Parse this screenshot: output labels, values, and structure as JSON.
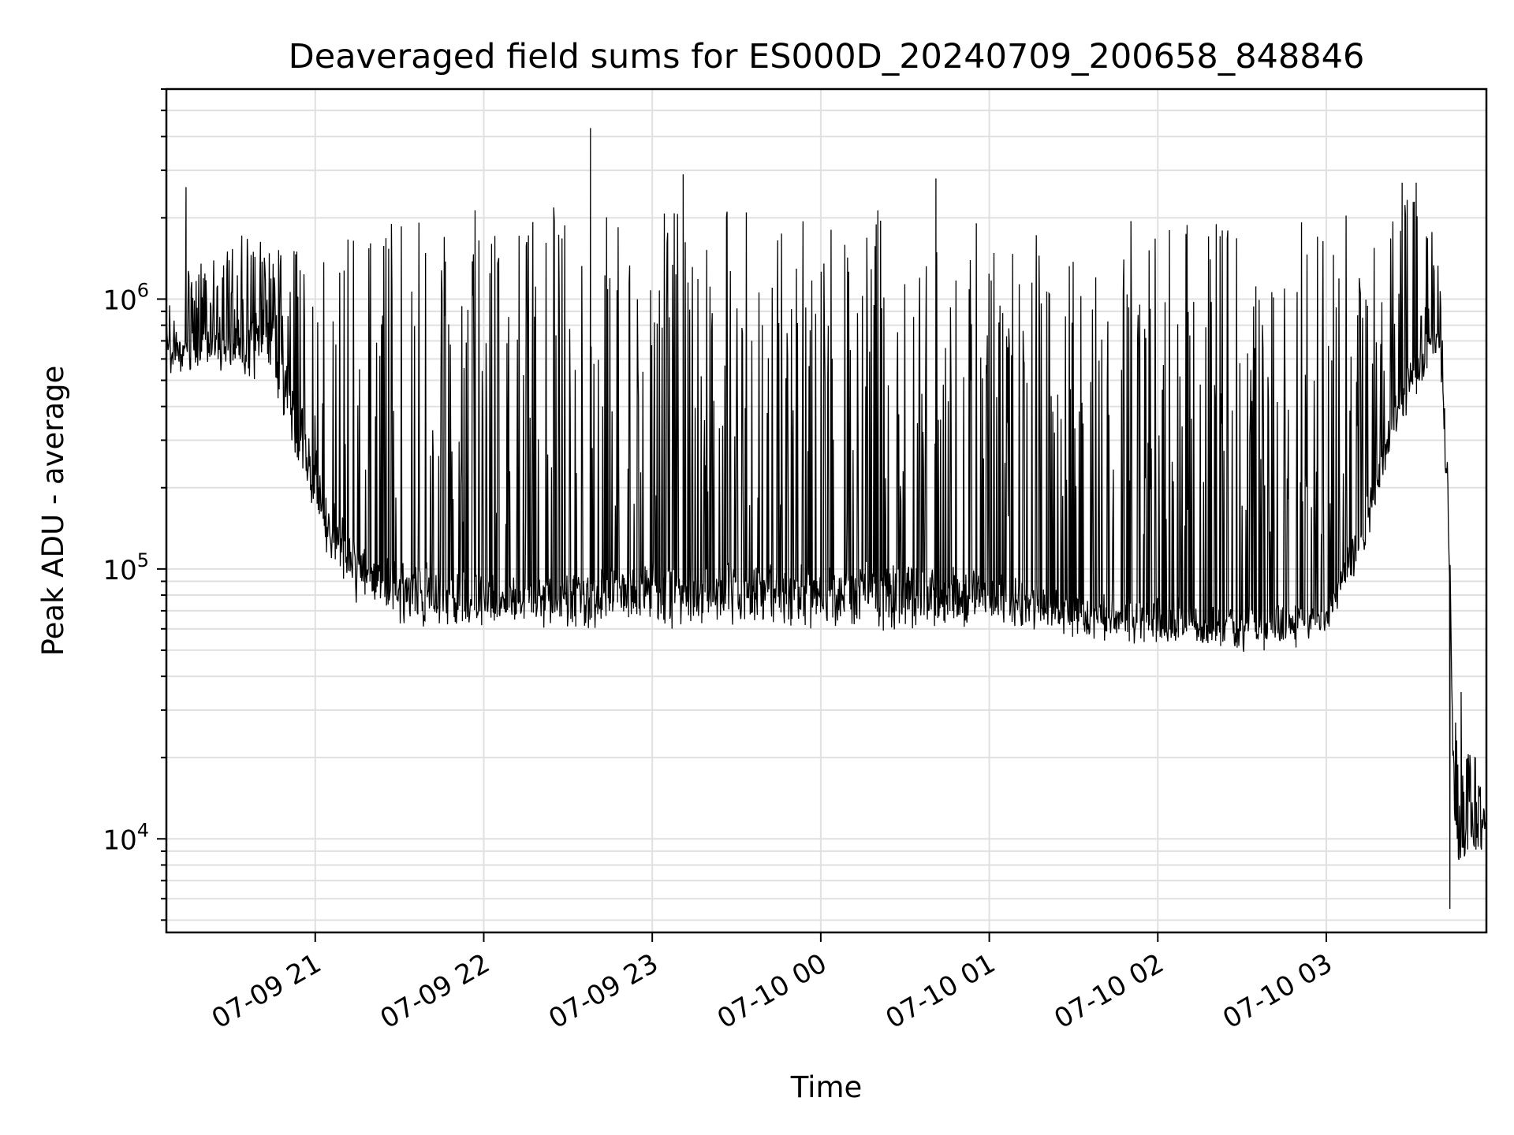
{
  "chart_data": {
    "type": "line",
    "title": "Deaveraged field sums for ES000D_20240709_200658_848846",
    "xlabel": "Time",
    "ylabel": "Peak ADU - average",
    "yscale": "log",
    "ylim": [
      4500,
      6000000
    ],
    "xlim": [
      "2024-07-09 20:07",
      "2024-07-10 03:57"
    ],
    "x_tick_labels": [
      "07-09 21",
      "07-09 22",
      "07-09 23",
      "07-10 00",
      "07-10 01",
      "07-10 02",
      "07-10 03"
    ],
    "x_ticks": [
      "2024-07-09 21:00",
      "2024-07-09 22:00",
      "2024-07-09 23:00",
      "2024-07-10 00:00",
      "2024-07-10 01:00",
      "2024-07-10 02:00",
      "2024-07-10 03:00"
    ],
    "y_tick_labels": [
      {
        "base": "10",
        "exp": "4",
        "value": 10000
      },
      {
        "base": "10",
        "exp": "5",
        "value": 100000
      },
      {
        "base": "10",
        "exp": "6",
        "value": 1000000
      }
    ],
    "grid": true,
    "series_color": "#000000",
    "series": [
      {
        "x": [
          "2024-07-09 20:07",
          "2024-07-09 20:15",
          "2024-07-09 20:25",
          "2024-07-09 20:35",
          "2024-07-09 20:45",
          "2024-07-09 20:55",
          "2024-07-09 21:05",
          "2024-07-09 21:15",
          "2024-07-09 21:30",
          "2024-07-09 21:45",
          "2024-07-09 22:00",
          "2024-07-09 22:15",
          "2024-07-09 22:30",
          "2024-07-09 22:45",
          "2024-07-09 23:00",
          "2024-07-09 23:15",
          "2024-07-09 23:30",
          "2024-07-09 23:45",
          "2024-07-10 00:00",
          "2024-07-10 00:15",
          "2024-07-10 00:30",
          "2024-07-10 00:45",
          "2024-07-10 01:00",
          "2024-07-10 01:15",
          "2024-07-10 01:30",
          "2024-07-10 01:45",
          "2024-07-10 02:00",
          "2024-07-10 02:15",
          "2024-07-10 02:30",
          "2024-07-10 02:45",
          "2024-07-10 03:00",
          "2024-07-10 03:05",
          "2024-07-10 03:15",
          "2024-07-10 03:25",
          "2024-07-10 03:35",
          "2024-07-10 03:40",
          "2024-07-10 03:43",
          "2024-07-10 03:46",
          "2024-07-10 03:50",
          "2024-07-10 03:57"
        ],
        "baseline": [
          700000,
          700000,
          750000,
          850000,
          950000,
          400000,
          180000,
          120000,
          100000,
          95000,
          90000,
          90000,
          95000,
          100000,
          100000,
          100000,
          100000,
          100000,
          100000,
          100000,
          100000,
          100000,
          90000,
          85000,
          80000,
          75000,
          75000,
          70000,
          70000,
          70000,
          70000,
          100000,
          180000,
          450000,
          700000,
          800000,
          300000,
          12000,
          14000,
          12000
        ],
        "peak": [
          900000,
          1300000,
          1500000,
          1800000,
          1600000,
          1500000,
          1800000,
          2000000,
          2100000,
          2200000,
          2200000,
          2200000,
          2200000,
          2200000,
          2200000,
          2200000,
          2200000,
          2200000,
          2200000,
          2200000,
          2100000,
          2100000,
          2100000,
          2000000,
          2000000,
          2000000,
          2000000,
          2000000,
          2100000,
          2200000,
          2200000,
          2100000,
          2200000,
          2500000,
          2300000,
          1500000,
          300000,
          30000,
          25000,
          16000
        ],
        "trough": [
          550000,
          520000,
          550000,
          500000,
          430000,
          200000,
          100000,
          70000,
          60000,
          58000,
          58000,
          58000,
          58000,
          58000,
          58000,
          55000,
          55000,
          58000,
          58000,
          57000,
          55000,
          58000,
          58000,
          57000,
          55000,
          55000,
          52000,
          50000,
          48000,
          48000,
          58000,
          75000,
          120000,
          300000,
          500000,
          700000,
          150000,
          6000,
          8000,
          9000
        ],
        "spikes": [
          {
            "x": "2024-07-09 20:14",
            "y": 2600000
          },
          {
            "x": "2024-07-09 22:38",
            "y": 4300000
          },
          {
            "x": "2024-07-09 23:11",
            "y": 2900000
          },
          {
            "x": "2024-07-10 00:41",
            "y": 2800000
          },
          {
            "x": "2024-07-10 03:27",
            "y": 2700000
          },
          {
            "x": "2024-07-10 03:32",
            "y": 2700000
          },
          {
            "x": "2024-07-10 03:44",
            "y": 5500
          },
          {
            "x": "2024-07-10 03:48",
            "y": 35000
          }
        ]
      }
    ]
  }
}
